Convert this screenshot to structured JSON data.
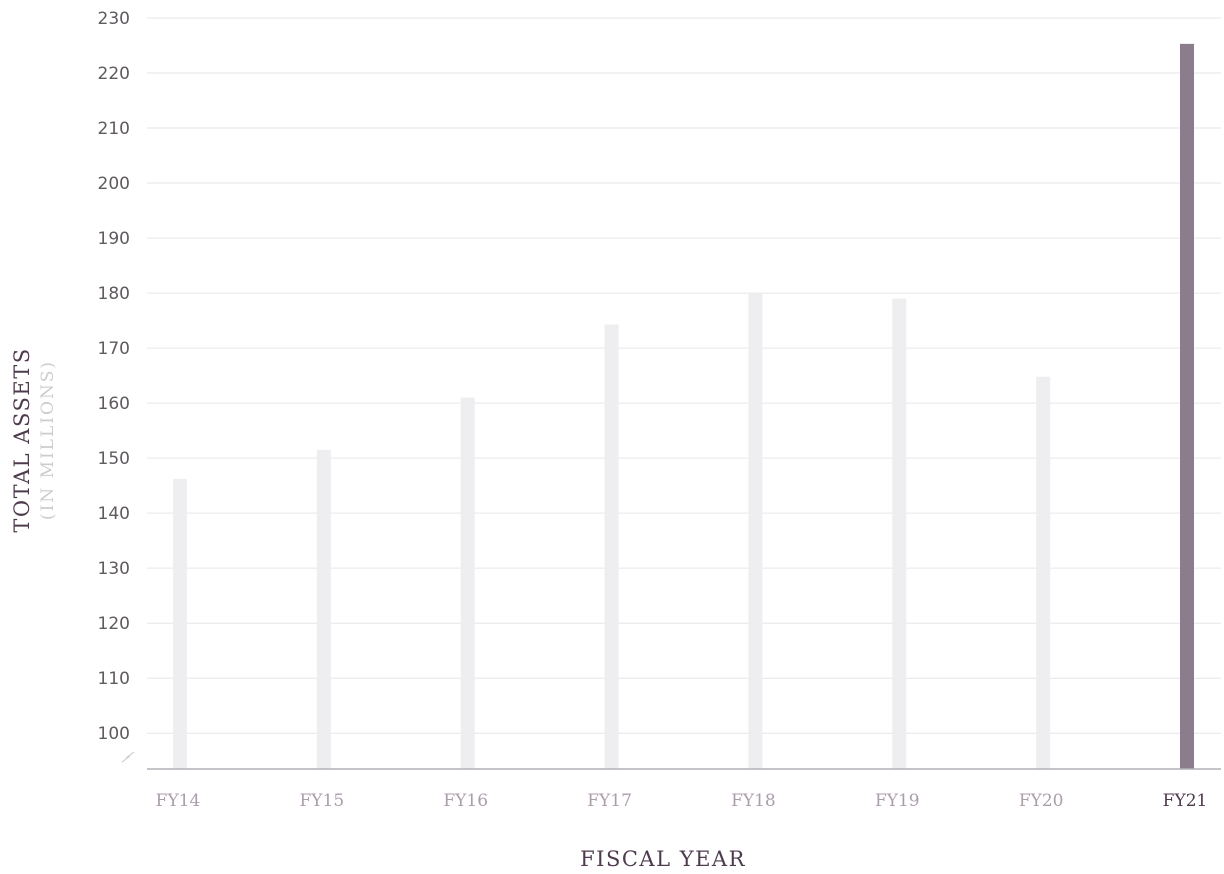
{
  "chart_data": {
    "type": "bar",
    "categories": [
      "FY14",
      "FY15",
      "FY16",
      "FY17",
      "FY18",
      "FY19",
      "FY20",
      "FY21"
    ],
    "values": [
      146.2,
      151.5,
      161,
      174.3,
      180,
      179,
      164.8,
      225.3
    ],
    "highlight": "FY21",
    "xlabel": "FISCAL YEAR",
    "ylabel": "TOTAL ASSETS",
    "ylabel_sub": "(IN MILLIONS)",
    "ylim": [
      93.5,
      230
    ],
    "yticks": [
      100,
      110,
      120,
      130,
      140,
      150,
      160,
      170,
      180,
      190,
      200,
      210,
      220,
      230
    ],
    "axis_break": true,
    "grid": true,
    "colors": {
      "bar": "#eeedef",
      "highlight_bar": "#8c7d8d",
      "tick_label": "#aa9eab",
      "highlight_label": "#4e3b4e",
      "grid": "#e6e6e8",
      "axis": "#b4b1b5"
    }
  }
}
